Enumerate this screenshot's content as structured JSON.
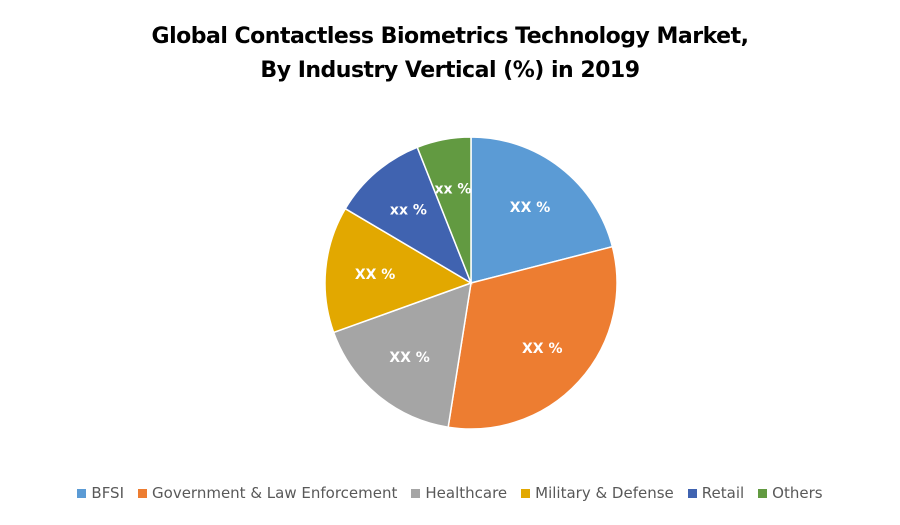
{
  "chart_data": {
    "type": "pie",
    "title": "Global Contactless Biometrics Technology Market, By Industry Vertical (%) in 2019",
    "title_lines": [
      "Global Contactless Biometrics Technology Market,",
      "By Industry Vertical (%) in 2019"
    ],
    "categories": [
      "BFSI",
      "Government & Law Enforcement",
      "Healthcare",
      "Military & Defense",
      "Retail",
      "Others"
    ],
    "values": [
      21,
      31.5,
      17,
      14,
      10.5,
      6
    ],
    "data_labels": [
      "XX %",
      "XX %",
      "XX %",
      "XX %",
      "xx %",
      "xx %"
    ],
    "colors": [
      "#5B9BD5",
      "#ED7D31",
      "#A5A5A5",
      "#E2A800",
      "#4063B0",
      "#629A41"
    ],
    "legend_position": "bottom",
    "start_angle_deg": 0,
    "direction": "clockwise"
  }
}
